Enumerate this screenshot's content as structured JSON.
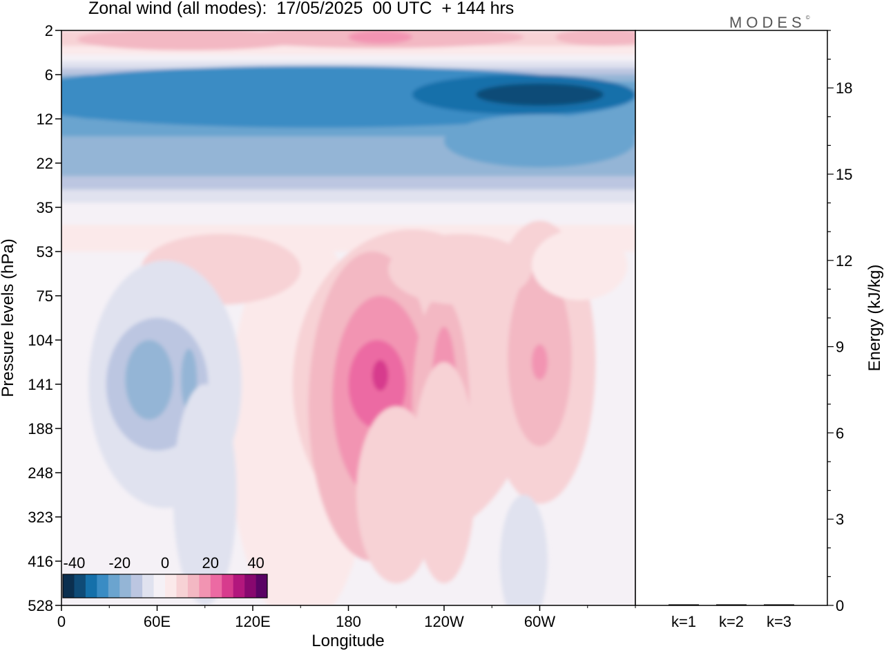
{
  "title": "Zonal wind (all modes):  17/05/2025  00 UTC  + 144 hrs",
  "logo": "MODES",
  "logo_mark": "©",
  "chart_data": [
    {
      "type": "heatmap",
      "variable": "Zonal wind",
      "xlabel": "Longitude",
      "ylabel": "Pressure levels (hPa)",
      "x_ticks": [
        "0",
        "60E",
        "120E",
        "180",
        "120W",
        "60W"
      ],
      "x_tick_lon": [
        0,
        60,
        120,
        180,
        240,
        300
      ],
      "xlim": [
        0,
        360
      ],
      "y_ticks": [
        "2",
        "6",
        "12",
        "22",
        "35",
        "53",
        "75",
        "104",
        "141",
        "188",
        "248",
        "323",
        "416",
        "528"
      ],
      "y_scale": "model levels (non-uniform)",
      "colorbar": {
        "ticks": [
          "-40",
          "-20",
          "0",
          "20",
          "40"
        ],
        "range": [
          -45,
          45
        ],
        "step": 5,
        "colors": [
          "#0b2f4f",
          "#0f4b77",
          "#1570aa",
          "#3a8cc4",
          "#6ba4cf",
          "#94b5d6",
          "#bcc6e1",
          "#e0e2ef",
          "#f5f1f6",
          "#fbe9ea",
          "#f7d2d5",
          "#f3b8c3",
          "#f294b2",
          "#ec6aa3",
          "#d73b8d",
          "#b2177d",
          "#88086f",
          "#5a0364"
        ]
      },
      "grid": false,
      "notes": "Easterlies 25–40 m/s at 6–22 hPa, strongest near 90W–40W; westerly jets ~20–30 m/s near 160–200E, 230–245E and 300E at 100–150 hPa; weak easterlies ~-15 m/s near 40–70E at 120–160 hPa."
    },
    {
      "type": "bar",
      "ylabel": "Energy (kJ/kg)",
      "categories": [
        "k=1",
        "k=2",
        "k=3"
      ],
      "values": [
        0.02,
        0.01,
        0.01
      ],
      "ylim": [
        0,
        20
      ],
      "y_ticks": [
        "0",
        "3",
        "6",
        "9",
        "12",
        "15",
        "18"
      ],
      "y_tick_values": [
        0,
        3,
        6,
        9,
        12,
        15,
        18
      ]
    }
  ]
}
